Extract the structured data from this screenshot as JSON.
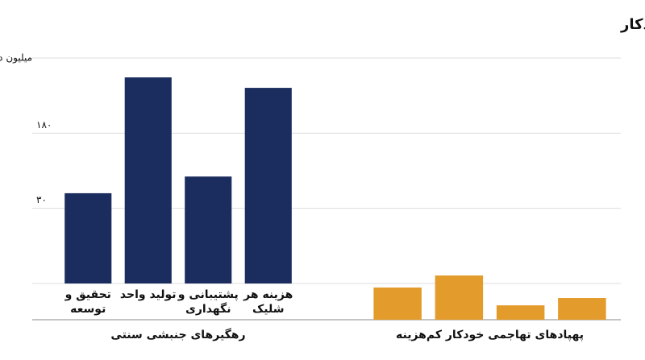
{
  "title": "مقایسه هزینه تخمینی سامانه‌های دفاعی: رهگیرهای سنتی در مقابل پهپادهای خودکار",
  "chart_data": [
    {
      "type": "bar",
      "y_label": "میلیون دلار (تخمینی)",
      "group_label": "رهگیرهای جنبشی سنتی",
      "categories": [
        "تحقیق و توسعه",
        "تولید واحد",
        "پشتیبانی و نگهداری",
        "هزینه هر شلیک"
      ],
      "values": [
        43,
        680,
        64,
        530
      ],
      "color": "#1b2d5e",
      "log_scale": true,
      "ylim": [
        5,
        1080
      ],
      "yticks": [
        {
          "value": 30,
          "label": "۳۰"
        },
        {
          "value": 180,
          "label": "۱۸۰"
        }
      ],
      "grid": true
    },
    {
      "type": "bar",
      "group_label": "پهپادهای تهاجمی خودکار کم‌هزینه",
      "categories": [
        null,
        null,
        null,
        null
      ],
      "values": [
        12.3,
        16.9,
        5.5,
        8.3
      ],
      "color": "#e39b2b",
      "log_scale": false,
      "ylim": [
        0,
        100
      ],
      "yticks": [],
      "grid": false
    }
  ]
}
